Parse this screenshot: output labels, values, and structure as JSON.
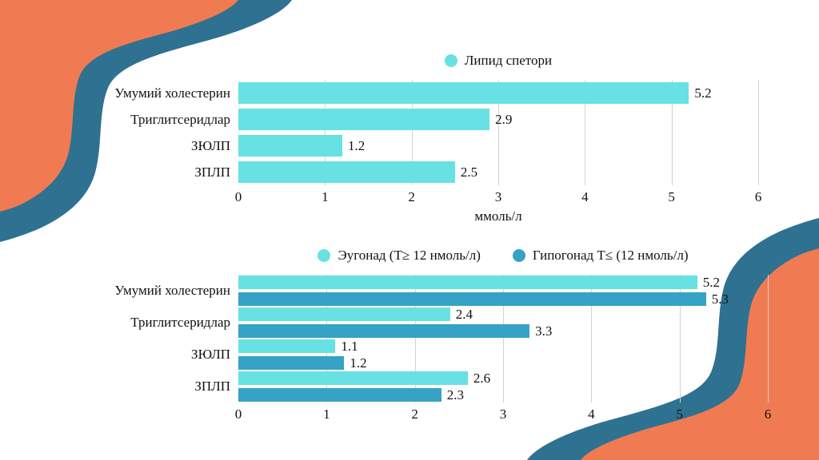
{
  "slide": {
    "colors": {
      "background": "#ffffff",
      "orange_wave": "#F07B52",
      "teal_wave": "#2E7191",
      "gridline": "#d2d2d2",
      "text": "#111111",
      "series_light": "#67E1E3",
      "series_dark": "#36A2C5"
    }
  },
  "chart_data": [
    {
      "type": "bar",
      "orientation": "horizontal",
      "title": "",
      "categories": [
        "Умумий холестерин",
        "Триглитсеридлар",
        "ЗЮЛП",
        "ЗПЛП"
      ],
      "series": [
        {
          "name": "Липид спетори",
          "color": "#67E1E3",
          "values": [
            5.2,
            2.9,
            1.2,
            2.5
          ]
        }
      ],
      "xlabel": "ммоль/л",
      "xlim": [
        0,
        6
      ],
      "ticks": [
        0,
        1,
        2,
        3,
        4,
        5,
        6
      ],
      "grid": true,
      "legend_position": "top"
    },
    {
      "type": "bar",
      "orientation": "horizontal",
      "title": "",
      "categories": [
        "Умумий холестерин",
        "Триглитсеридлар",
        "ЗЮЛП",
        "ЗПЛП"
      ],
      "series": [
        {
          "name": "Эугонад (Т≥ 12 нмоль/л)",
          "color": "#67E1E3",
          "values": [
            5.2,
            2.4,
            1.1,
            2.6
          ]
        },
        {
          "name": "Гипогонад Т≤ (12 нмоль/л)",
          "color": "#36A2C5",
          "values": [
            5.3,
            3.3,
            1.2,
            2.3
          ]
        }
      ],
      "xlabel": "",
      "xlim": [
        0,
        6
      ],
      "ticks": [
        0,
        1,
        2,
        3,
        4,
        5,
        6
      ],
      "grid": true,
      "legend_position": "top"
    }
  ]
}
